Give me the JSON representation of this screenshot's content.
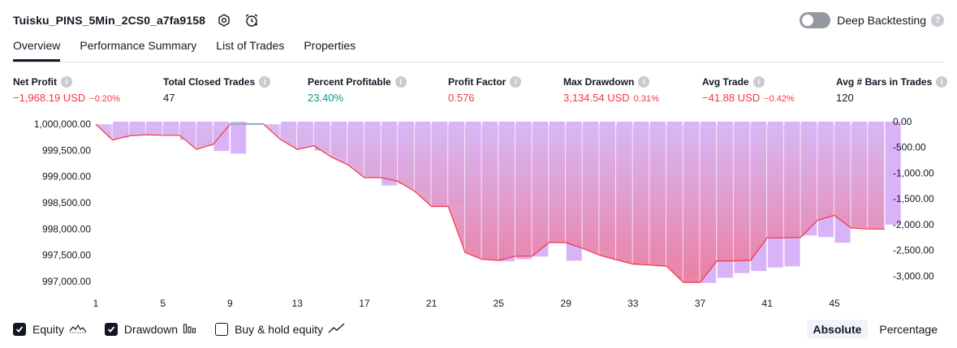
{
  "header": {
    "title": "Tuisku_PINS_5Min_2CS0_a7fa9158",
    "deep_backtesting": "Deep Backtesting",
    "help": "?"
  },
  "tabs": [
    {
      "label": "Overview"
    },
    {
      "label": "Performance Summary"
    },
    {
      "label": "List of Trades"
    },
    {
      "label": "Properties"
    }
  ],
  "metrics": {
    "net_profit": {
      "label": "Net Profit",
      "value": "−1,968.19 USD",
      "pct": "−0.20%"
    },
    "total_closed": {
      "label": "Total Closed Trades",
      "value": "47"
    },
    "percent_profitable": {
      "label": "Percent Profitable",
      "value": "23.40%"
    },
    "profit_factor": {
      "label": "Profit Factor",
      "value": "0.576"
    },
    "max_drawdown": {
      "label": "Max Drawdown",
      "value": "3,134.54 USD",
      "pct": "0.31%"
    },
    "avg_trade": {
      "label": "Avg Trade",
      "value": "−41.88 USD",
      "pct": "−0.42%"
    },
    "avg_bars": {
      "label": "Avg # Bars in Trades",
      "value": "120"
    },
    "info": "i"
  },
  "chart_data": {
    "type": "area",
    "x": [
      1,
      2,
      3,
      4,
      5,
      6,
      7,
      8,
      9,
      10,
      11,
      12,
      13,
      14,
      15,
      16,
      17,
      18,
      19,
      20,
      21,
      22,
      23,
      24,
      25,
      26,
      27,
      28,
      29,
      30,
      31,
      32,
      33,
      34,
      35,
      36,
      37,
      38,
      39,
      40,
      41,
      42,
      43,
      44,
      45,
      46,
      47,
      48
    ],
    "x_ticks": [
      "1",
      "5",
      "9",
      "13",
      "17",
      "21",
      "25",
      "29",
      "33",
      "37",
      "41",
      "45"
    ],
    "left_axis": {
      "ticks": [
        "1,000,000.00",
        "999,500.00",
        "999,000.00",
        "998,500.00",
        "998,000.00",
        "997,500.00",
        "997,000.00"
      ],
      "range": [
        996950,
        1000050
      ]
    },
    "right_axis": {
      "ticks": [
        "0.00",
        "-500.00",
        "-1,000.00",
        "-1,500.00",
        "-2,000.00",
        "-2,500.00",
        "-3,000.00"
      ],
      "range": [
        -3150,
        0
      ]
    },
    "series": [
      {
        "name": "Equity",
        "values": [
          1000000,
          999700,
          999780,
          999800,
          999790,
          999790,
          999520,
          999620,
          1000000,
          1000000,
          1000000,
          999710,
          999520,
          999590,
          999380,
          999230,
          998980,
          998980,
          998910,
          998720,
          998430,
          998430,
          997550,
          997420,
          997400,
          997480,
          997480,
          997740,
          997740,
          997630,
          997500,
          997410,
          997330,
          997310,
          997290,
          996980,
          996980,
          997390,
          997390,
          997400,
          997830,
          997830,
          997840,
          998170,
          998260,
          998020,
          998000,
          998000
        ]
      },
      {
        "name": "Drawdown",
        "values": [
          0,
          -310,
          -220,
          -200,
          -210,
          -350,
          -470,
          -570,
          -620,
          0,
          0,
          -300,
          -480,
          -560,
          -640,
          -780,
          -1020,
          -1240,
          -1210,
          -1350,
          -1640,
          -1590,
          -2480,
          -2670,
          -2710,
          -2670,
          -2620,
          -2350,
          -2700,
          -2410,
          -2500,
          -2550,
          -2780,
          -2690,
          -2750,
          -2990,
          -3130,
          -3030,
          -2940,
          -2900,
          -2830,
          -2810,
          -2210,
          -2240,
          -2350,
          -2010,
          -2000,
          -2000
        ]
      }
    ],
    "colors": {
      "equity_line": "#f23645",
      "equity_fill_bottom": "#e8789d",
      "drawdown_bar": "#d9b3f7",
      "profit_line": "#7ab8d9",
      "grid": "#e8e8e8",
      "axis_text": "#131722"
    }
  },
  "footer": {
    "equity": "Equity",
    "drawdown": "Drawdown",
    "buy_hold": "Buy & hold equity",
    "absolute": "Absolute",
    "percentage": "Percentage"
  }
}
